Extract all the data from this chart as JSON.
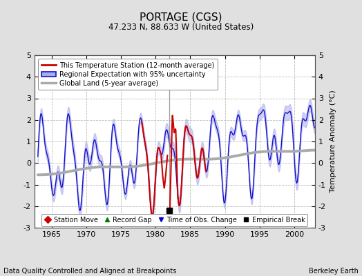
{
  "title": "PORTAGE (CGS)",
  "subtitle": "47.233 N, 88.633 W (United States)",
  "ylabel": "Temperature Anomaly (°C)",
  "xlabel_left": "Data Quality Controlled and Aligned at Breakpoints",
  "xlabel_right": "Berkeley Earth",
  "xlim": [
    1962.5,
    2003.0
  ],
  "ylim": [
    -3,
    5
  ],
  "yticks": [
    -3,
    -2,
    -1,
    0,
    1,
    2,
    3,
    4,
    5
  ],
  "xticks": [
    1965,
    1970,
    1975,
    1980,
    1985,
    1990,
    1995,
    2000
  ],
  "bg_color": "#e0e0e0",
  "plot_bg_color": "#ffffff",
  "grid_color": "#bbbbbb",
  "blue_line_color": "#1111cc",
  "blue_fill_color": "#aaaaee",
  "red_line_color": "#cc0000",
  "gray_line_color": "#aaaaaa",
  "vert_line_color": "#888888",
  "empirical_break_x": 1982.0,
  "empirical_break_y": -2.2,
  "legend_items": [
    {
      "label": "This Temperature Station (12-month average)"
    },
    {
      "label": "Regional Expectation with 95% uncertainty"
    },
    {
      "label": "Global Land (5-year average)"
    }
  ],
  "marker_items": [
    {
      "label": "Station Move",
      "color": "#cc0000",
      "marker": "D"
    },
    {
      "label": "Record Gap",
      "color": "#007700",
      "marker": "^"
    },
    {
      "label": "Time of Obs. Change",
      "color": "#0000cc",
      "marker": "v"
    },
    {
      "label": "Empirical Break",
      "color": "#000000",
      "marker": "s"
    }
  ]
}
